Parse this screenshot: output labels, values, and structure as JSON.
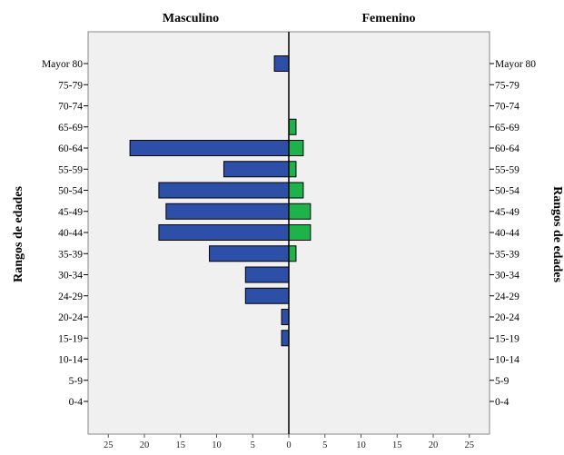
{
  "chart_data": {
    "type": "bar",
    "orientation": "horizontal",
    "layout": "population-pyramid",
    "categories": [
      "Mayor 80",
      "75-79",
      "70-74",
      "65-69",
      "60-64",
      "55-59",
      "50-54",
      "45-49",
      "40-44",
      "35-39",
      "30-34",
      "24-29",
      "20-24",
      "15-19",
      "10-14",
      "5-9",
      "0-4"
    ],
    "series": [
      {
        "name": "Masculino",
        "side": "left",
        "color": "#2e4fa8",
        "values": [
          2,
          0,
          0,
          0,
          22,
          9,
          18,
          17,
          18,
          11,
          6,
          6,
          1,
          1,
          0,
          0,
          0
        ]
      },
      {
        "name": "Femenino",
        "side": "right",
        "color": "#1db34a",
        "values": [
          0,
          0,
          0,
          1,
          2,
          1,
          2,
          3,
          3,
          1,
          0,
          0,
          0,
          0,
          0,
          0,
          0
        ]
      }
    ],
    "xlim": [
      0,
      25
    ],
    "xticks": [
      0,
      5,
      10,
      15,
      20,
      25
    ],
    "ylabel_left": "Rangos de edades",
    "ylabel_right": "Rangos de edades",
    "background_color": "#f0f0f0",
    "grid": false
  }
}
